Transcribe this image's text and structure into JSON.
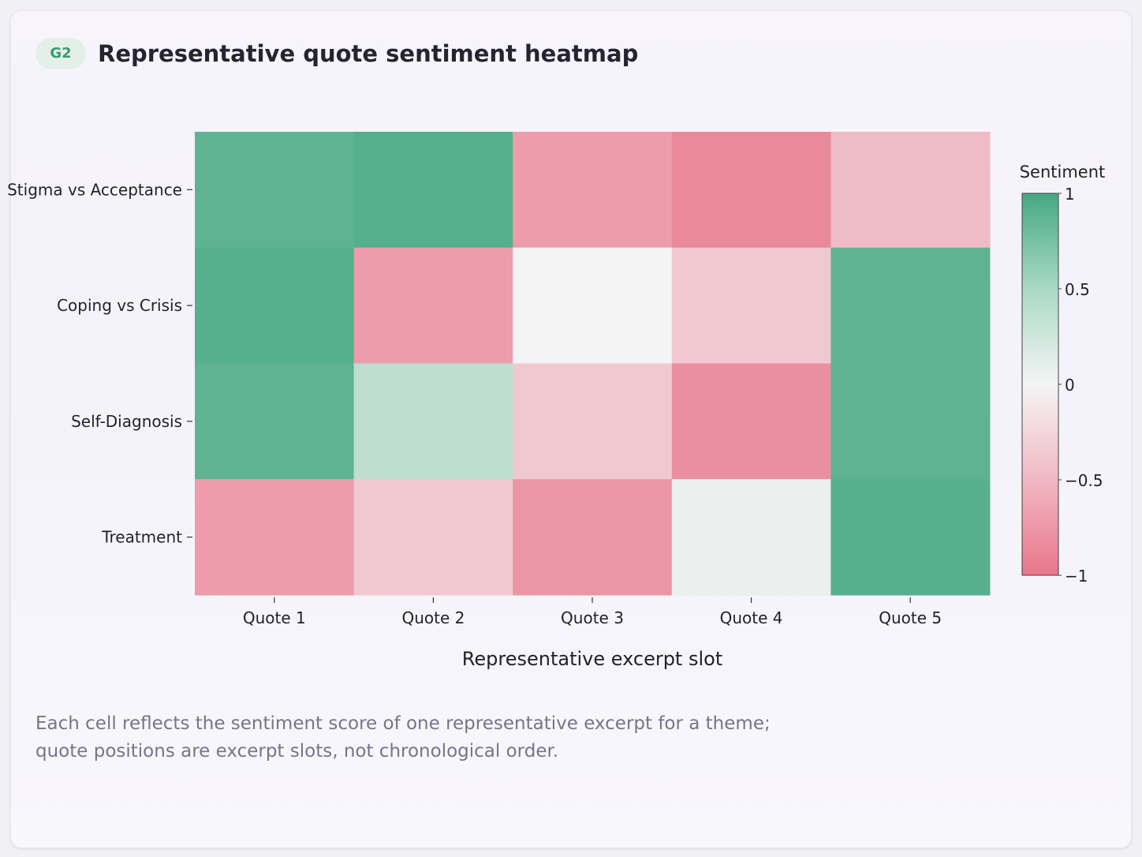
{
  "header": {
    "badge": "G2",
    "title": "Representative quote sentiment heatmap"
  },
  "caption": {
    "line1": "Each cell reflects the sentiment score of one representative excerpt for a theme;",
    "line2": "quote positions are excerpt slots, not chronological order."
  },
  "chart_data": {
    "type": "heatmap",
    "title": "Representative quote sentiment heatmap",
    "xlabel": "Representative excerpt slot",
    "ylabel": "",
    "x": [
      "Quote 1",
      "Quote 2",
      "Quote 3",
      "Quote 4",
      "Quote 5"
    ],
    "y": [
      "Stigma vs Acceptance",
      "Coping vs Crisis",
      "Self-Diagnosis",
      "Treatment"
    ],
    "z": [
      [
        0.85,
        0.9,
        -0.7,
        -0.85,
        -0.45
      ],
      [
        0.9,
        -0.7,
        0.0,
        -0.35,
        0.85
      ],
      [
        0.85,
        0.3,
        -0.35,
        -0.8,
        0.85
      ],
      [
        -0.7,
        -0.35,
        -0.75,
        0.05,
        0.9
      ]
    ],
    "zlim": [
      -1,
      1
    ],
    "colorbar": {
      "title": "Sentiment",
      "ticks": [
        1,
        0.5,
        0,
        -0.5,
        -1
      ],
      "tick_labels": [
        "1",
        "0.5",
        "0",
        "−0.5",
        "−1"
      ]
    },
    "colors": {
      "negative": "#e8768a",
      "neutral": "#f4f4f4",
      "positive": "#45a882"
    }
  }
}
